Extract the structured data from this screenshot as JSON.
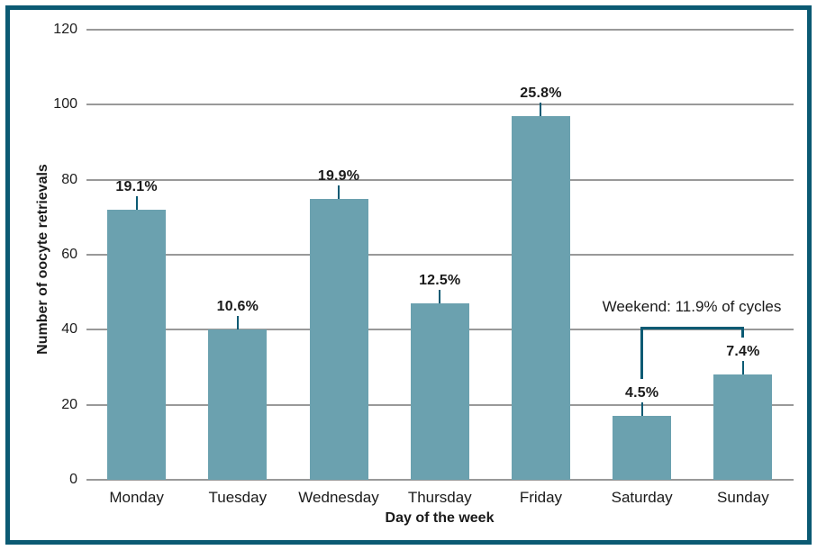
{
  "chart_data": {
    "type": "bar",
    "title": "",
    "xlabel": "Day of the week",
    "ylabel": "Number of oocyte retrievals",
    "categories": [
      "Monday",
      "Tuesday",
      "Wednesday",
      "Thursday",
      "Friday",
      "Saturday",
      "Sunday"
    ],
    "values": [
      72,
      40,
      75,
      47,
      97,
      17,
      28
    ],
    "bar_labels": [
      "19.1%",
      "10.6%",
      "19.9%",
      "12.5%",
      "25.8%",
      "4.5%",
      "7.4%"
    ],
    "ylim": [
      0,
      120
    ],
    "yticks": [
      0,
      20,
      40,
      60,
      80,
      100,
      120
    ],
    "grid": "horizontal",
    "legend": "none",
    "annotation": {
      "text": "Weekend: 11.9% of cycles",
      "spans": [
        "Saturday",
        "Sunday"
      ]
    },
    "colors": {
      "bar": "#6ba1af",
      "frame": "#0b5a73",
      "bracket": "#0b5a73",
      "gridline": "#999999",
      "text": "#1a1a1a"
    }
  }
}
